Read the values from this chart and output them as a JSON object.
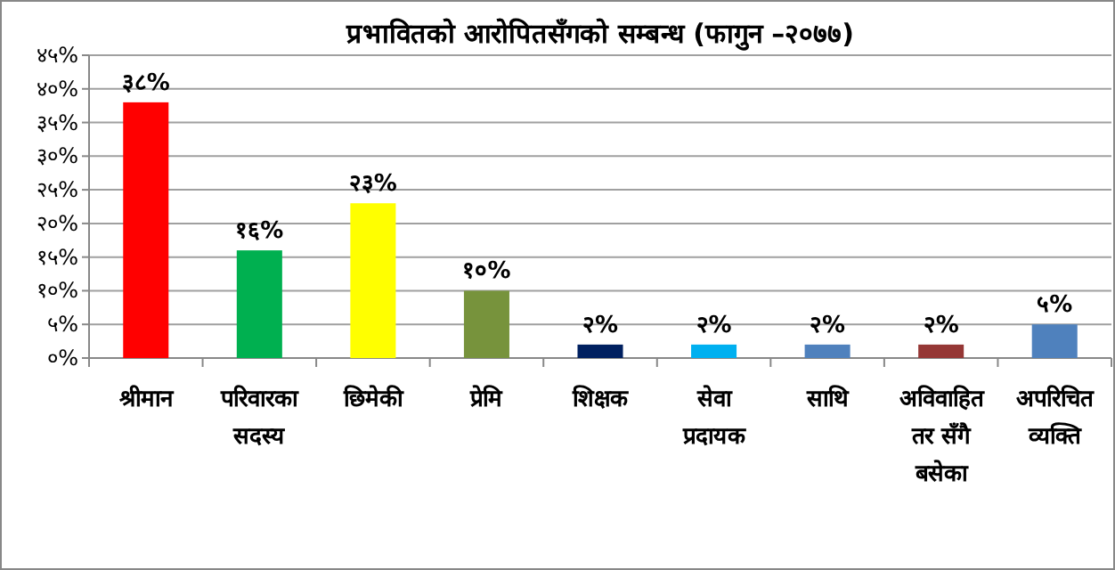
{
  "chart_data": {
    "type": "bar",
    "title": "प्रभावितको आरोपितसँगको सम्बन्ध (फागुन –२०७७)",
    "categories": [
      "श्रीमान",
      "परिवारका सदस्य",
      "छिमेकी",
      "प्रेमि",
      "शिक्षक",
      "सेवा प्रदायक",
      "साथि",
      "अविवाहित तर सँगै बसेका",
      "अपरिचित व्यक्ति"
    ],
    "values": [
      38,
      16,
      23,
      10,
      2,
      2,
      2,
      2,
      5
    ],
    "colors": [
      "#ff0000",
      "#00b050",
      "#ffff00",
      "#77933c",
      "#002060",
      "#00b0f0",
      "#4f81bd",
      "#953735",
      "#4f81bd"
    ],
    "value_labels": [
      "३८%",
      "१६%",
      "२३%",
      "१०%",
      "२%",
      "२%",
      "२%",
      "२%",
      "५%"
    ],
    "ylim": [
      0,
      45
    ],
    "yticks": [
      {
        "value": 0,
        "label": "०%"
      },
      {
        "value": 5,
        "label": "५%"
      },
      {
        "value": 10,
        "label": "१०%"
      },
      {
        "value": 15,
        "label": "१५%"
      },
      {
        "value": 20,
        "label": "२०%"
      },
      {
        "value": 25,
        "label": "२५%"
      },
      {
        "value": 30,
        "label": "३०%"
      },
      {
        "value": 35,
        "label": "३५%"
      },
      {
        "value": 40,
        "label": "४०%"
      },
      {
        "value": 45,
        "label": "४५%"
      }
    ],
    "grid": "y"
  }
}
